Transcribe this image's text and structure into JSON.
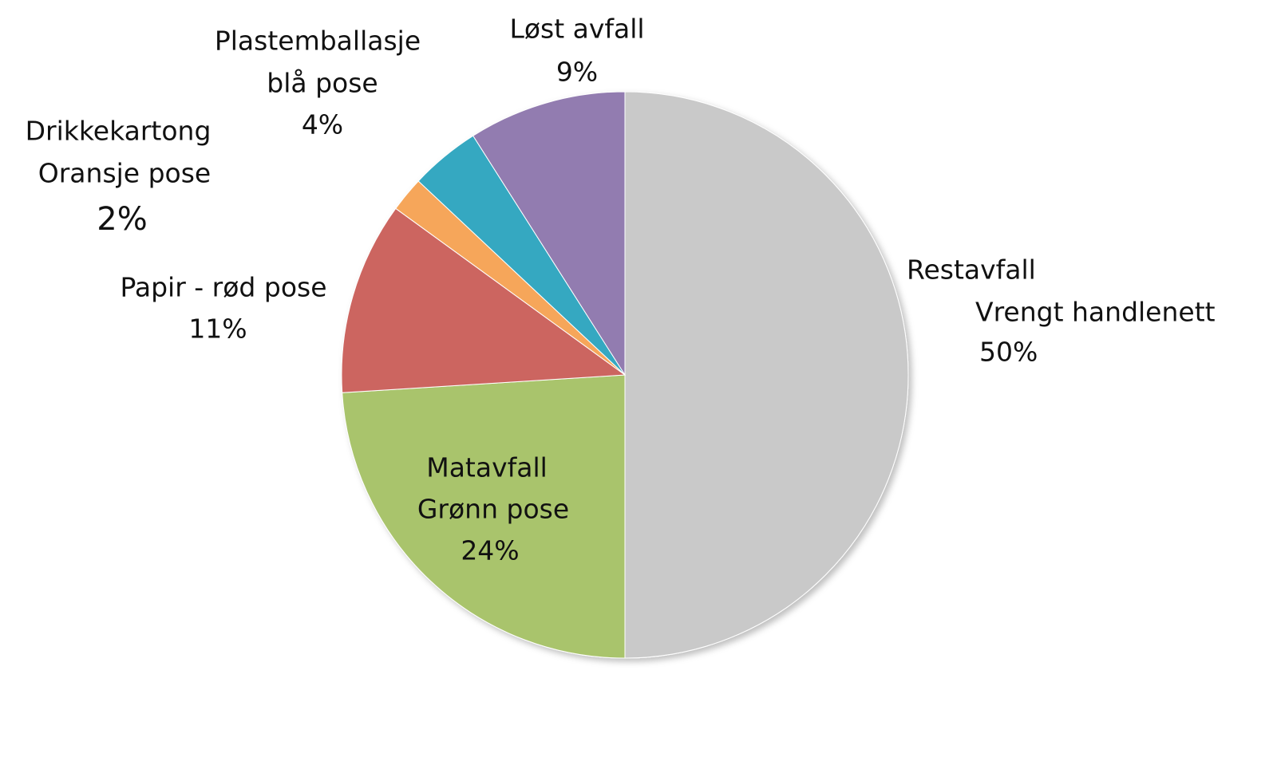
{
  "chart_data": {
    "type": "pie",
    "categories": [
      [
        "Restavfall",
        "Vrengt handlenett"
      ],
      [
        "Matavfall",
        "Grønn pose"
      ],
      [
        "Papir - rød pose"
      ],
      [
        "Drikkekartong",
        "Oransje pose"
      ],
      [
        "Plastemballasje",
        "blå pose"
      ],
      [
        "Løst avfall"
      ]
    ],
    "values": [
      50,
      24,
      11,
      2,
      4,
      9
    ],
    "value_labels": [
      "50%",
      "24%",
      "11%",
      "2%",
      "4%",
      "9%"
    ],
    "colors": [
      "#c9c9c9",
      "#a9c46c",
      "#cc6560",
      "#f6a65a",
      "#34a8c1",
      "#927cb0"
    ]
  }
}
